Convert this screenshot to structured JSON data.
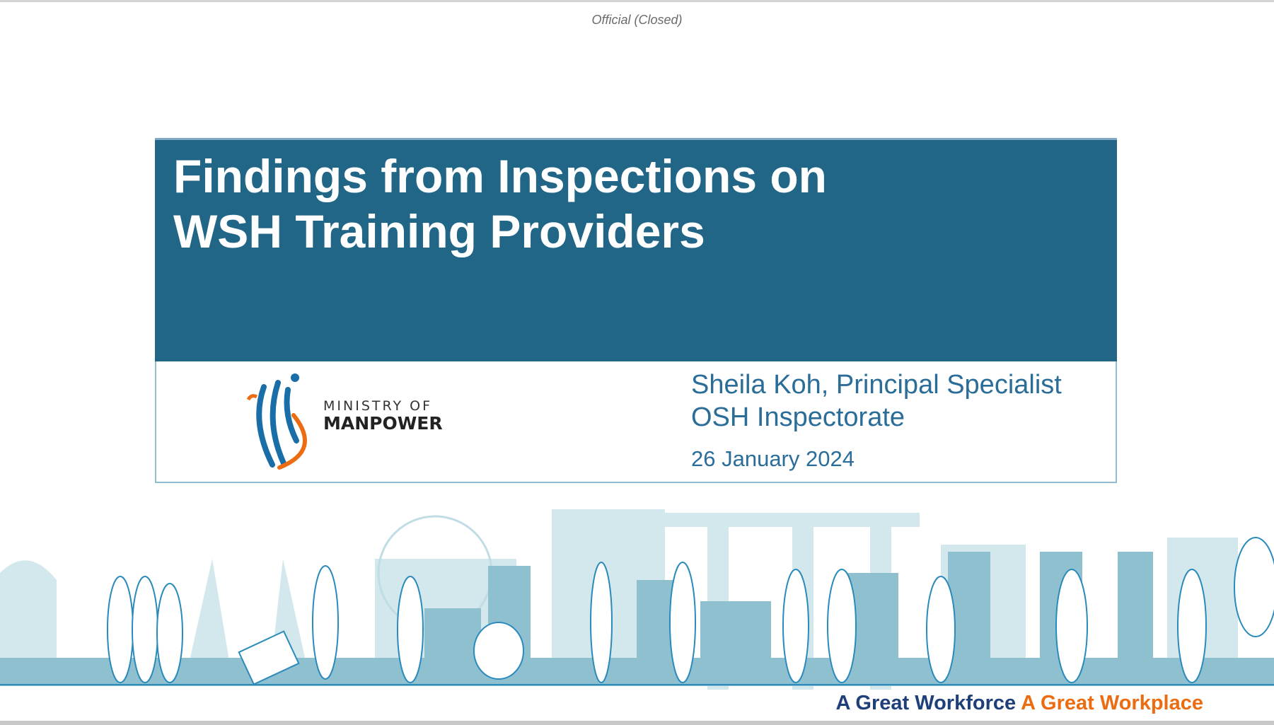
{
  "classification": "Official (Closed)",
  "slide": {
    "title_lines": [
      "Findings from Inspections on",
      "WSH Training Providers"
    ],
    "presenter_line1": "Sheila Koh, Principal Specialist",
    "presenter_line2": "OSH Inspectorate",
    "date": "26 January 2024",
    "logo": {
      "line1": "MINISTRY OF",
      "line2": "MANPOWER"
    },
    "tagline_part1": "A Great Workforce",
    "tagline_part2": "A Great Workplace"
  },
  "colors": {
    "banner": "#216687",
    "accent_blue": "#2a6d98",
    "tagline_blue": "#1f3f78",
    "tagline_orange": "#ec6c12",
    "skyline": "#8fc0d0"
  }
}
